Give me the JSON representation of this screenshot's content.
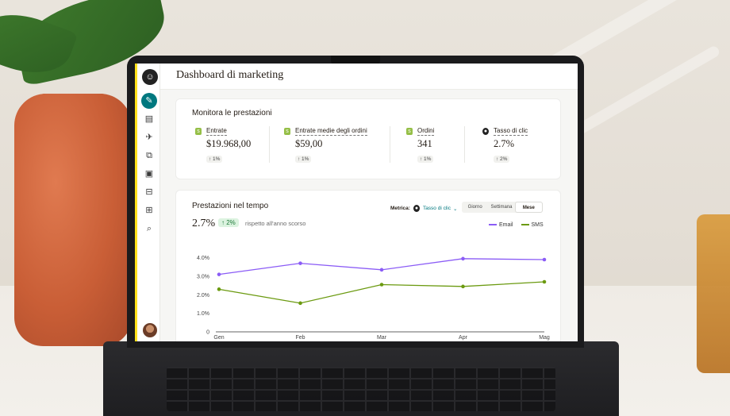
{
  "header": {
    "title": "Dashboard di marketing"
  },
  "performance": {
    "title": "Monitora le prestazioni",
    "metrics": [
      {
        "icon": "shopify-icon",
        "label": "Entrate",
        "value": "$19.968,00",
        "change": "↑ 1%"
      },
      {
        "icon": "shopify-icon",
        "label": "Entrate medie degli ordini",
        "value": "$59,00",
        "change": "↑ 1%"
      },
      {
        "icon": "shopify-icon",
        "label": "Ordini",
        "value": "341",
        "change": "↑ 1%"
      },
      {
        "icon": "mailchimp-icon",
        "label": "Tasso di clic",
        "value": "2.7%",
        "change": "↑ 2%"
      }
    ]
  },
  "over_time": {
    "title": "Prestazioni nel tempo",
    "rate": "2.7%",
    "change": "↑ 2%",
    "note": "rispetto all'anno scorso",
    "metric_label": "Metrica:",
    "metric_value": "Tasso di clic",
    "periods": [
      "Giorno",
      "Settimana",
      "Mese"
    ],
    "active_period": "Mese"
  },
  "colors": {
    "email": "#8b5cf6",
    "sms": "#6b9a10",
    "accent": "#00787f",
    "brand_yellow": "#ffe01b"
  },
  "chart_data": {
    "type": "line",
    "categories": [
      "Gen",
      "Feb",
      "Mar",
      "Apr",
      "Mag"
    ],
    "y_ticks": [
      "0",
      "1.0%",
      "2.0%",
      "3.0%",
      "4.0%"
    ],
    "ylim": [
      0,
      4.2
    ],
    "series": [
      {
        "name": "Email",
        "values": [
          3.1,
          3.7,
          3.35,
          3.95,
          3.9
        ]
      },
      {
        "name": "SMS",
        "values": [
          2.3,
          1.55,
          2.55,
          2.45,
          2.7
        ]
      }
    ],
    "legend": "top-right",
    "grid": false
  }
}
